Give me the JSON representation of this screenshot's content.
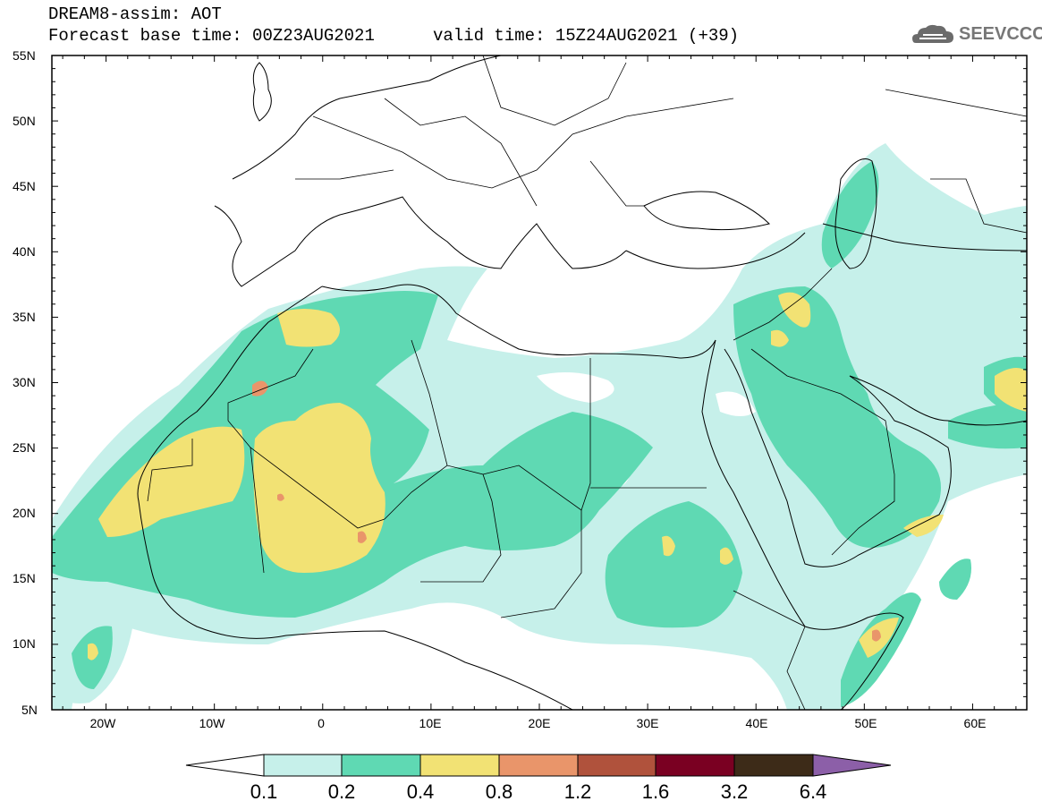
{
  "header": {
    "title_line1": "DREAM8-assim: AOT",
    "title_line2": "Forecast base time: 00Z23AUG2021",
    "valid_time": "valid time: 15Z24AUG2021 (+39)",
    "logo_text": "SEEVCCC",
    "logo_icon": "cloud-icon"
  },
  "axes": {
    "lat_labels": [
      "55N",
      "50N",
      "45N",
      "40N",
      "35N",
      "30N",
      "25N",
      "20N",
      "15N",
      "10N",
      "5N"
    ],
    "lon_labels": [
      "20W",
      "10W",
      "0",
      "10E",
      "20E",
      "30E",
      "40E",
      "50E",
      "60E"
    ]
  },
  "colorbar": {
    "labels": [
      "0.1",
      "0.2",
      "0.4",
      "0.8",
      "1.2",
      "1.6",
      "3.2",
      "6.4"
    ],
    "colors": [
      "#ffffff",
      "#c6f0ea",
      "#5fd9b3",
      "#f2e274",
      "#e9956a",
      "#b0523c",
      "#7a0022",
      "#3d2b18",
      "#8c5fa8"
    ]
  },
  "colors": {
    "aot_0_1": "#c6f0ea",
    "aot_0_2": "#5fd9b3",
    "aot_0_4": "#f2e274",
    "aot_0_8": "#e9956a"
  }
}
